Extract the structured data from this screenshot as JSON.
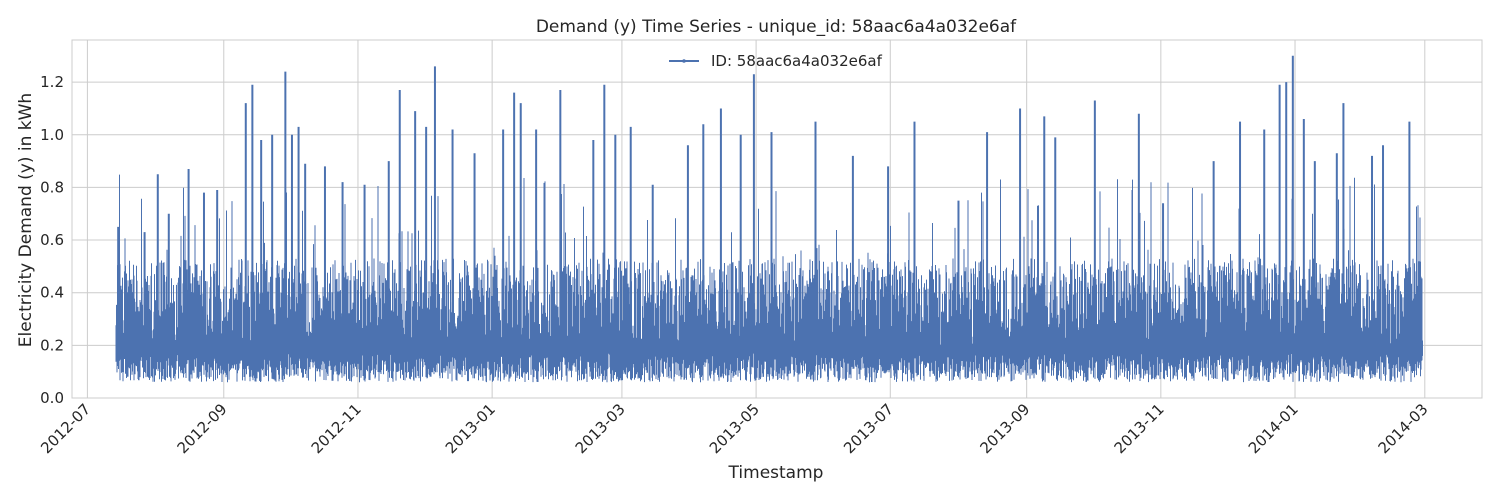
{
  "chart_data": {
    "type": "line",
    "title": "Demand (y) Time Series - unique_id: 58aac6a4a032e6af",
    "xlabel": "Timestamp",
    "ylabel": "Electricity Demand (y) in kWh",
    "x_range": [
      "2012-07-14",
      "2014-02-28"
    ],
    "xlim": [
      "2012-06-24",
      "2014-03-27"
    ],
    "ylim": [
      0.0,
      1.36
    ],
    "x_ticks": [
      "2012-07",
      "2012-09",
      "2012-11",
      "2013-01",
      "2013-03",
      "2013-05",
      "2013-07",
      "2013-09",
      "2013-11",
      "2014-01",
      "2014-03"
    ],
    "y_ticks": [
      0.0,
      0.2,
      0.4,
      0.6,
      0.8,
      1.0,
      1.2
    ],
    "y_tick_labels": [
      "0.0",
      "0.2",
      "0.4",
      "0.6",
      "0.8",
      "1.0",
      "1.2"
    ],
    "grid": true,
    "legend_position": "top-center",
    "series": [
      {
        "name": "ID: 58aac6a4a032e6af",
        "color": "#4c72b0",
        "peaks": [
          {
            "x": "2012-07-15",
            "y": 0.65
          },
          {
            "x": "2012-07-27",
            "y": 0.63
          },
          {
            "x": "2012-08-02",
            "y": 0.85
          },
          {
            "x": "2012-08-07",
            "y": 0.7
          },
          {
            "x": "2012-08-16",
            "y": 0.87
          },
          {
            "x": "2012-08-23",
            "y": 0.78
          },
          {
            "x": "2012-08-29",
            "y": 0.79
          },
          {
            "x": "2012-09-11",
            "y": 1.12
          },
          {
            "x": "2012-09-14",
            "y": 1.19
          },
          {
            "x": "2012-09-18",
            "y": 0.98
          },
          {
            "x": "2012-09-23",
            "y": 1.0
          },
          {
            "x": "2012-09-29",
            "y": 1.24
          },
          {
            "x": "2012-10-02",
            "y": 1.0
          },
          {
            "x": "2012-10-05",
            "y": 1.03
          },
          {
            "x": "2012-10-08",
            "y": 0.89
          },
          {
            "x": "2012-10-17",
            "y": 0.88
          },
          {
            "x": "2012-10-25",
            "y": 0.82
          },
          {
            "x": "2012-11-04",
            "y": 0.81
          },
          {
            "x": "2012-11-15",
            "y": 0.9
          },
          {
            "x": "2012-11-20",
            "y": 1.17
          },
          {
            "x": "2012-11-27",
            "y": 1.09
          },
          {
            "x": "2012-12-02",
            "y": 1.03
          },
          {
            "x": "2012-12-06",
            "y": 1.26
          },
          {
            "x": "2012-12-14",
            "y": 1.02
          },
          {
            "x": "2012-12-24",
            "y": 0.93
          },
          {
            "x": "2013-01-06",
            "y": 1.02
          },
          {
            "x": "2013-01-11",
            "y": 1.16
          },
          {
            "x": "2013-01-14",
            "y": 1.12
          },
          {
            "x": "2013-01-21",
            "y": 1.02
          },
          {
            "x": "2013-02-01",
            "y": 1.17
          },
          {
            "x": "2013-02-16",
            "y": 0.98
          },
          {
            "x": "2013-02-21",
            "y": 1.19
          },
          {
            "x": "2013-02-26",
            "y": 1.0
          },
          {
            "x": "2013-03-05",
            "y": 1.03
          },
          {
            "x": "2013-03-15",
            "y": 0.81
          },
          {
            "x": "2013-03-31",
            "y": 0.96
          },
          {
            "x": "2013-04-07",
            "y": 1.04
          },
          {
            "x": "2013-04-15",
            "y": 1.1
          },
          {
            "x": "2013-04-24",
            "y": 1.0
          },
          {
            "x": "2013-04-30",
            "y": 1.23
          },
          {
            "x": "2013-05-08",
            "y": 1.01
          },
          {
            "x": "2013-05-28",
            "y": 1.05
          },
          {
            "x": "2013-06-14",
            "y": 0.92
          },
          {
            "x": "2013-06-30",
            "y": 0.88
          },
          {
            "x": "2013-07-12",
            "y": 1.05
          },
          {
            "x": "2013-08-01",
            "y": 0.75
          },
          {
            "x": "2013-08-14",
            "y": 1.01
          },
          {
            "x": "2013-08-29",
            "y": 1.1
          },
          {
            "x": "2013-09-09",
            "y": 1.07
          },
          {
            "x": "2013-09-14",
            "y": 0.99
          },
          {
            "x": "2013-10-02",
            "y": 1.13
          },
          {
            "x": "2013-10-22",
            "y": 1.08
          },
          {
            "x": "2013-11-02",
            "y": 0.74
          },
          {
            "x": "2013-11-25",
            "y": 0.9
          },
          {
            "x": "2013-12-07",
            "y": 1.05
          },
          {
            "x": "2013-12-18",
            "y": 1.02
          },
          {
            "x": "2013-12-25",
            "y": 1.19
          },
          {
            "x": "2013-12-28",
            "y": 1.2
          },
          {
            "x": "2013-12-31",
            "y": 1.3
          },
          {
            "x": "2014-01-05",
            "y": 1.06
          },
          {
            "x": "2014-01-10",
            "y": 0.9
          },
          {
            "x": "2014-01-20",
            "y": 0.93
          },
          {
            "x": "2014-01-23",
            "y": 1.12
          },
          {
            "x": "2014-02-05",
            "y": 0.92
          },
          {
            "x": "2014-02-10",
            "y": 0.96
          },
          {
            "x": "2014-02-22",
            "y": 1.05
          }
        ],
        "baseline_min": 0.06,
        "typical_band": [
          0.12,
          0.45
        ]
      }
    ]
  }
}
